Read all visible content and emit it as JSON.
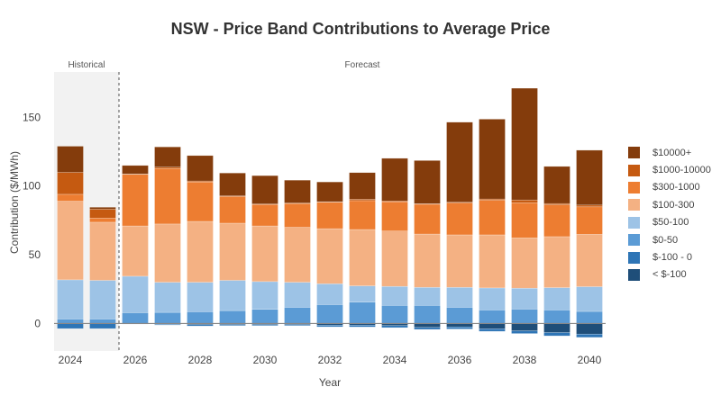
{
  "chart_data": {
    "type": "bar",
    "stacked": true,
    "title": "NSW - Price Band Contributions to Average Price",
    "xlabel": "Year",
    "ylabel": "Contribution ($/MWh)",
    "ylim": [
      -20,
      183
    ],
    "yticks": [
      0,
      50,
      100,
      150
    ],
    "xticks": [
      2024,
      2026,
      2028,
      2030,
      2032,
      2034,
      2036,
      2038,
      2040
    ],
    "grid": false,
    "legend_position": "right",
    "regions": [
      {
        "label": "Historical",
        "from": 2024,
        "to": 2025
      },
      {
        "label": "Forecast",
        "from": 2026,
        "to": 2040
      }
    ],
    "categories": [
      2024,
      2025,
      2026,
      2027,
      2028,
      2029,
      2030,
      2031,
      2032,
      2033,
      2034,
      2035,
      2036,
      2037,
      2038,
      2039,
      2040
    ],
    "series": [
      {
        "name": "< $-100",
        "color": "#1f4e79",
        "values": [
          0,
          0,
          0,
          -0.6,
          -0.8,
          -0.8,
          -0.8,
          -0.8,
          -1.2,
          -1.2,
          -1.5,
          -2.8,
          -2.5,
          -3.9,
          -5.3,
          -6.6,
          -7.7
        ]
      },
      {
        "name": "$-100 - 0",
        "color": "#2e75b6",
        "values": [
          -3.7,
          -3.7,
          -0.4,
          -0.5,
          -1.0,
          -0.7,
          -0.7,
          -0.7,
          -1.2,
          -1.3,
          -1.5,
          -1.5,
          -1.5,
          -1.8,
          -2.0,
          -2.4,
          -2.4
        ]
      },
      {
        "name": "$0-50",
        "color": "#5b9bd5",
        "values": [
          3.3,
          3.3,
          7.9,
          8.1,
          8.6,
          9.4,
          10.3,
          11.8,
          13.8,
          15.6,
          13.2,
          13.2,
          11.8,
          9.9,
          10.5,
          9.9,
          8.8
        ]
      },
      {
        "name": "$50-100",
        "color": "#9dc3e6",
        "values": [
          28.5,
          28.1,
          26.5,
          21.9,
          21.4,
          22.0,
          20.2,
          18.2,
          15.1,
          11.8,
          13.8,
          13.1,
          14.5,
          16.0,
          15.2,
          16.2,
          18.0
        ]
      },
      {
        "name": "$100-300",
        "color": "#f4b183",
        "values": [
          57.2,
          42.3,
          36.6,
          42.4,
          44.3,
          41.6,
          40.5,
          40.0,
          40.1,
          41.0,
          40.3,
          38.8,
          38.2,
          38.6,
          36.6,
          37.1,
          38.1
        ]
      },
      {
        "name": "$300-1000",
        "color": "#ed7d31",
        "values": [
          5.0,
          3.0,
          37.5,
          40.4,
          28.7,
          19.5,
          15.6,
          17.3,
          19.2,
          21.0,
          21.3,
          21.7,
          23.2,
          25.2,
          25.6,
          23.1,
          20.0
        ]
      },
      {
        "name": "$1000-10000",
        "color": "#c55a11",
        "values": [
          16.0,
          6.5,
          0.3,
          1.0,
          0.7,
          0.4,
          0.4,
          0.4,
          0.4,
          1.0,
          0.6,
          0.4,
          0.6,
          0.9,
          2.0,
          1.0,
          1.3
        ]
      },
      {
        "name": "$10000+",
        "color": "#843c0c",
        "values": [
          19.0,
          1.4,
          6.2,
          14.7,
          18.5,
          16.6,
          20.6,
          16.6,
          14.4,
          19.4,
          31.0,
          31.4,
          58.2,
          58.1,
          81.3,
          27.0,
          39.9
        ]
      }
    ]
  }
}
